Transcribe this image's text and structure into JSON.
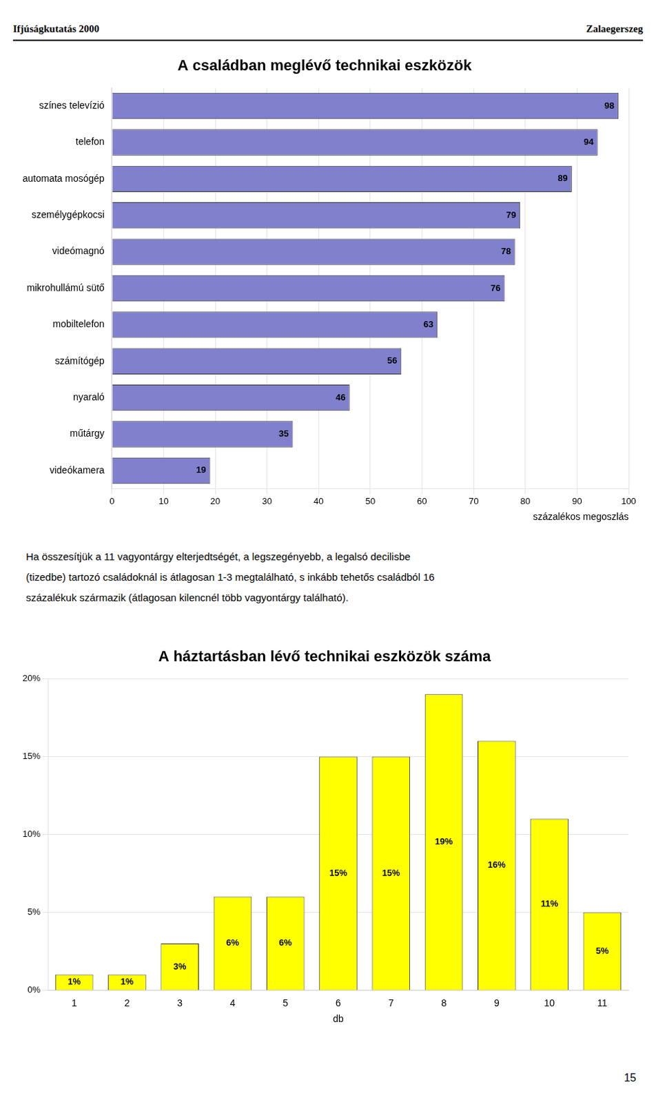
{
  "annotations": [
    "Ifjúságkutatás 2000",
    "Zalaegerszeg",
    "Ha összesítjük a 11 vagyontárgy elterjedtségét, a legszegényebb, a legalsó decilisbe\n(tizedbe) tartozó családoknál is átlagosan 1-3 megtalálható, s inkább tehetős családból 16\nszázalékuk származik (átlagosan kilencnél több vagyontárgy található).",
    "15"
  ],
  "chart_data": [
    {
      "type": "bar",
      "orientation": "horizontal",
      "title": "A családban meglévő technikai eszközök",
      "categories": [
        "színes televízió",
        "telefon",
        "automata mosógép",
        "személygépkocsi",
        "videómagnó",
        "mikrohullámú sütő",
        "mobiltelefon",
        "számítógép",
        "nyaraló",
        "műtárgy",
        "videókamera"
      ],
      "values": [
        98,
        94,
        89,
        79,
        78,
        76,
        63,
        56,
        46,
        35,
        19
      ],
      "color": "#8080CC",
      "xlim": [
        0,
        100
      ],
      "xticks": [
        0,
        10,
        20,
        30,
        40,
        50,
        60,
        70,
        80,
        90,
        100
      ],
      "xlabel": "százalékos megoszlás",
      "grid": true,
      "data_labels": true
    },
    {
      "type": "bar",
      "title": "A háztartásban lévő technikai eszközök száma",
      "categories": [
        1,
        2,
        3,
        4,
        5,
        6,
        7,
        8,
        9,
        10,
        11
      ],
      "values": [
        1,
        1,
        3,
        6,
        6,
        15,
        15,
        19,
        16,
        11,
        5
      ],
      "value_labels": [
        "1%",
        "1%",
        "3%",
        "6%",
        "6%",
        "15%",
        "15%",
        "19%",
        "16%",
        "11%",
        "5%"
      ],
      "color": "#FFFF00",
      "ylim": [
        0,
        20
      ],
      "yticks": [
        {
          "value": 0,
          "label": "0%"
        },
        {
          "value": 5,
          "label": "5%"
        },
        {
          "value": 10,
          "label": "10%"
        },
        {
          "value": 15,
          "label": "15%"
        },
        {
          "value": 20,
          "label": "20%"
        }
      ],
      "xlabel": "db",
      "grid": true,
      "data_labels": true
    }
  ]
}
